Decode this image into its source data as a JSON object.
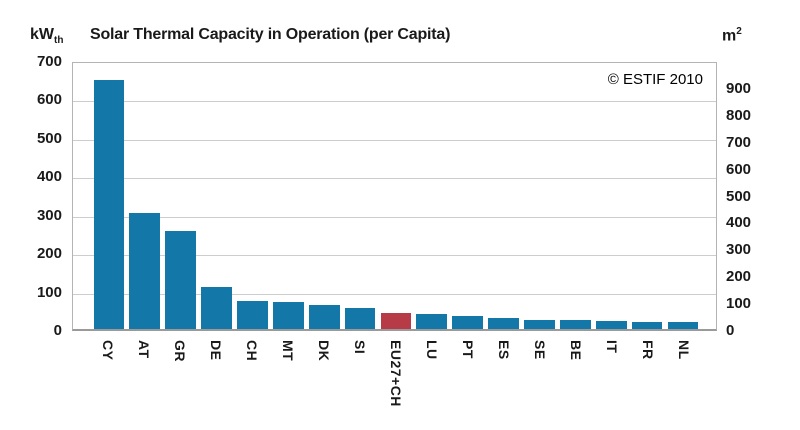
{
  "header": {
    "left_unit": "kW",
    "left_unit_sub": "th",
    "right_unit": "m",
    "right_unit_sup": "2"
  },
  "chart_data": {
    "type": "bar",
    "title": "Solar Thermal Capacity in Operation (per Capita)",
    "annotation": "© ESTIF 2010",
    "categories": [
      "CY",
      "AT",
      "GR",
      "DE",
      "CH",
      "MT",
      "DK",
      "SI",
      "EU27+CH",
      "LU",
      "PT",
      "ES",
      "SE",
      "BE",
      "IT",
      "FR",
      "NL"
    ],
    "values": [
      648,
      302,
      254,
      110,
      72,
      71,
      62,
      56,
      42,
      38,
      34,
      28,
      24,
      23,
      21,
      19,
      18
    ],
    "highlight_category": "EU27+CH",
    "left_axis": {
      "unit": "kW_th",
      "min": 0,
      "max": 700,
      "tick_step": 100,
      "ticks": [
        700,
        600,
        500,
        400,
        300,
        200,
        100,
        0
      ]
    },
    "right_axis": {
      "unit": "m2",
      "min": 0,
      "max": 1000,
      "tick_step": 100,
      "ticks": [
        900,
        800,
        700,
        600,
        500,
        400,
        300,
        200,
        100,
        0
      ]
    },
    "grid": true,
    "legend": false,
    "colors": {
      "bar": "#1377a8",
      "highlight": "#b63b46",
      "gridline": "#cdcdcd",
      "border": "#b4b4b4",
      "background": "#ffffff",
      "text": "#1a1a1a"
    }
  }
}
